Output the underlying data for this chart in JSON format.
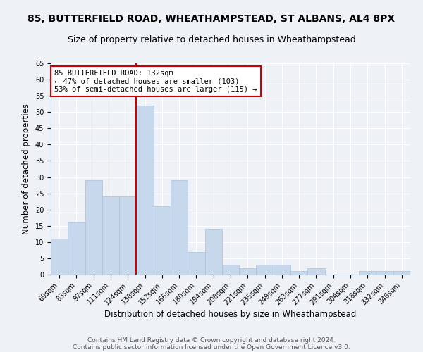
{
  "title1": "85, BUTTERFIELD ROAD, WHEATHAMPSTEAD, ST ALBANS, AL4 8PX",
  "title2": "Size of property relative to detached houses in Wheathampstead",
  "xlabel": "Distribution of detached houses by size in Wheathampstead",
  "ylabel": "Number of detached properties",
  "categories": [
    "69sqm",
    "83sqm",
    "97sqm",
    "111sqm",
    "124sqm",
    "138sqm",
    "152sqm",
    "166sqm",
    "180sqm",
    "194sqm",
    "208sqm",
    "221sqm",
    "235sqm",
    "249sqm",
    "263sqm",
    "277sqm",
    "291sqm",
    "304sqm",
    "318sqm",
    "332sqm",
    "346sqm"
  ],
  "values": [
    11,
    16,
    29,
    24,
    24,
    52,
    21,
    29,
    7,
    14,
    3,
    2,
    3,
    3,
    1,
    2,
    0,
    0,
    1,
    1,
    1
  ],
  "bar_color": "#c8d8ec",
  "bar_edge_color": "#aabfd8",
  "vline_color": "#cc0000",
  "annotation_text": "85 BUTTERFIELD ROAD: 132sqm\n← 47% of detached houses are smaller (103)\n53% of semi-detached houses are larger (115) →",
  "annotation_box_color": "#ffffff",
  "annotation_box_edge": "#cc0000",
  "ylim": [
    0,
    65
  ],
  "yticks": [
    0,
    5,
    10,
    15,
    20,
    25,
    30,
    35,
    40,
    45,
    50,
    55,
    60,
    65
  ],
  "footer1": "Contains HM Land Registry data © Crown copyright and database right 2024.",
  "footer2": "Contains public sector information licensed under the Open Government Licence v3.0.",
  "bg_color": "#eef2f7",
  "grid_color": "#ffffff",
  "title1_fontsize": 10,
  "title2_fontsize": 9,
  "xlabel_fontsize": 8.5,
  "ylabel_fontsize": 8.5,
  "footer_fontsize": 6.5,
  "annot_fontsize": 7.5,
  "tick_fontsize": 7
}
